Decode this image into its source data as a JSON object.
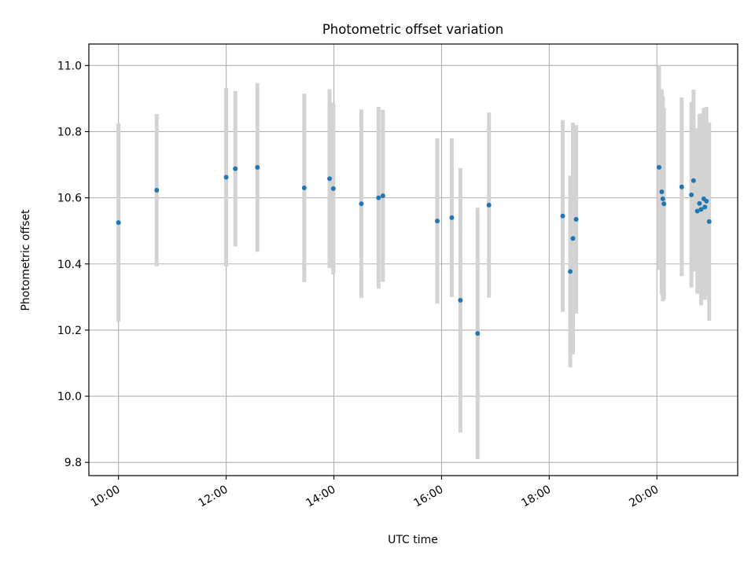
{
  "chart_data": {
    "type": "scatter",
    "title": "Photometric offset variation",
    "xlabel": "UTC time",
    "ylabel": "Photometric offset",
    "xlim": [
      9.45,
      21.5
    ],
    "ylim": [
      9.76,
      11.065
    ],
    "x_ticks": [
      {
        "value": 10,
        "label": "10:00"
      },
      {
        "value": 12,
        "label": "12:00"
      },
      {
        "value": 14,
        "label": "14:00"
      },
      {
        "value": 16,
        "label": "16:00"
      },
      {
        "value": 18,
        "label": "18:00"
      },
      {
        "value": 20,
        "label": "20:00"
      }
    ],
    "y_ticks": [
      {
        "value": 9.8,
        "label": "9.8"
      },
      {
        "value": 10.0,
        "label": "10.0"
      },
      {
        "value": 10.2,
        "label": "10.2"
      },
      {
        "value": 10.4,
        "label": "10.4"
      },
      {
        "value": 10.6,
        "label": "10.6"
      },
      {
        "value": 10.8,
        "label": "10.8"
      },
      {
        "value": 11.0,
        "label": "11.0"
      }
    ],
    "grid": true,
    "colors": {
      "marker": "#1f77b4",
      "errorbar": "#d3d3d3",
      "grid": "#b0b0b0"
    },
    "points": [
      {
        "x": 10.0,
        "y": 10.525,
        "err": 0.3
      },
      {
        "x": 10.71,
        "y": 10.623,
        "err": 0.23
      },
      {
        "x": 12.0,
        "y": 10.662,
        "err": 0.27
      },
      {
        "x": 12.17,
        "y": 10.688,
        "err": 0.235
      },
      {
        "x": 12.58,
        "y": 10.692,
        "err": 0.255
      },
      {
        "x": 13.45,
        "y": 10.63,
        "err": 0.285
      },
      {
        "x": 13.92,
        "y": 10.658,
        "err": 0.27
      },
      {
        "x": 13.99,
        "y": 10.628,
        "err": 0.26
      },
      {
        "x": 14.51,
        "y": 10.582,
        "err": 0.285
      },
      {
        "x": 14.83,
        "y": 10.6,
        "err": 0.275
      },
      {
        "x": 14.91,
        "y": 10.606,
        "err": 0.26
      },
      {
        "x": 15.92,
        "y": 10.53,
        "err": 0.25
      },
      {
        "x": 16.19,
        "y": 10.54,
        "err": 0.24
      },
      {
        "x": 16.35,
        "y": 10.29,
        "err": 0.4
      },
      {
        "x": 16.67,
        "y": 10.19,
        "err": 0.38
      },
      {
        "x": 16.88,
        "y": 10.578,
        "err": 0.28
      },
      {
        "x": 18.25,
        "y": 10.545,
        "err": 0.29
      },
      {
        "x": 18.39,
        "y": 10.377,
        "err": 0.29
      },
      {
        "x": 18.44,
        "y": 10.477,
        "err": 0.35
      },
      {
        "x": 18.5,
        "y": 10.535,
        "err": 0.285
      },
      {
        "x": 20.04,
        "y": 10.692,
        "err": 0.31
      },
      {
        "x": 20.09,
        "y": 10.618,
        "err": 0.31
      },
      {
        "x": 20.11,
        "y": 10.597,
        "err": 0.31
      },
      {
        "x": 20.13,
        "y": 10.582,
        "err": 0.29
      },
      {
        "x": 20.46,
        "y": 10.633,
        "err": 0.27
      },
      {
        "x": 20.64,
        "y": 10.609,
        "err": 0.28
      },
      {
        "x": 20.68,
        "y": 10.652,
        "err": 0.275
      },
      {
        "x": 20.75,
        "y": 10.56,
        "err": 0.25
      },
      {
        "x": 20.79,
        "y": 10.583,
        "err": 0.27
      },
      {
        "x": 20.82,
        "y": 10.565,
        "err": 0.29
      },
      {
        "x": 20.87,
        "y": 10.597,
        "err": 0.275
      },
      {
        "x": 20.89,
        "y": 10.572,
        "err": 0.28
      },
      {
        "x": 20.92,
        "y": 10.59,
        "err": 0.285
      },
      {
        "x": 20.97,
        "y": 10.528,
        "err": 0.3
      }
    ]
  }
}
